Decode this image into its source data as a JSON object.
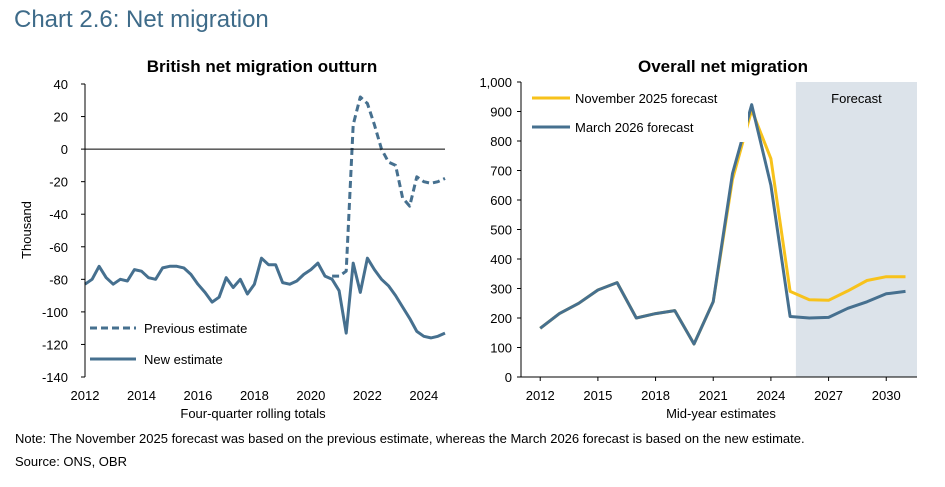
{
  "heading": "Chart 2.6: Net migration",
  "note": "Note: The November 2025 forecast was based on the previous estimate, whereas the March 2026 forecast is based on the new estimate.",
  "source": "Source: ONS, OBR",
  "colors": {
    "dark_blue": "#46708f",
    "gold": "#f7c21b",
    "forecast_shade": "#dce3ea",
    "axis": "#000000"
  },
  "chart_data": [
    {
      "type": "line",
      "title": "British net migration outturn",
      "xlabel": "Four-quarter rolling totals",
      "ylabel": "Thousand",
      "xlim": [
        2012,
        2024.75
      ],
      "ylim": [
        -140,
        40
      ],
      "x_ticks": [
        2012,
        2014,
        2016,
        2018,
        2020,
        2022,
        2024
      ],
      "y_ticks": [
        -140,
        -120,
        -100,
        -80,
        -60,
        -40,
        -20,
        0,
        20,
        40
      ],
      "legend": "bottom-left",
      "series": [
        {
          "name": "Previous estimate",
          "style": "dashed",
          "x": [
            2020.75,
            2021.0,
            2021.25,
            2021.5,
            2021.75,
            2022.0,
            2022.25,
            2022.5,
            2022.75,
            2023.0,
            2023.25,
            2023.5,
            2023.75,
            2024.0,
            2024.25,
            2024.5,
            2024.75
          ],
          "values": [
            -78,
            -78,
            -75,
            15,
            32,
            28,
            15,
            0,
            -8,
            -10,
            -30,
            -35,
            -17,
            -20,
            -21,
            -20,
            -18
          ]
        },
        {
          "name": "New estimate",
          "style": "solid",
          "x": [
            2012.0,
            2012.25,
            2012.5,
            2012.75,
            2013.0,
            2013.25,
            2013.5,
            2013.75,
            2014.0,
            2014.25,
            2014.5,
            2014.75,
            2015.0,
            2015.25,
            2015.5,
            2015.75,
            2016.0,
            2016.25,
            2016.5,
            2016.75,
            2017.0,
            2017.25,
            2017.5,
            2017.75,
            2018.0,
            2018.25,
            2018.5,
            2018.75,
            2019.0,
            2019.25,
            2019.5,
            2019.75,
            2020.0,
            2020.25,
            2020.5,
            2020.75,
            2021.0,
            2021.25,
            2021.5,
            2021.75,
            2022.0,
            2022.25,
            2022.5,
            2022.75,
            2023.0,
            2023.25,
            2023.5,
            2023.75,
            2024.0,
            2024.25,
            2024.5,
            2024.75
          ],
          "values": [
            -83,
            -80,
            -72,
            -79,
            -83,
            -80,
            -81,
            -74,
            -75,
            -79,
            -80,
            -73,
            -72,
            -72,
            -73,
            -77,
            -83,
            -88,
            -94,
            -91,
            -79,
            -85,
            -80,
            -89,
            -83,
            -67,
            -71,
            -71,
            -82,
            -83,
            -81,
            -77,
            -74,
            -70,
            -78,
            -80,
            -87,
            -113,
            -70,
            -88,
            -67,
            -74,
            -80,
            -84,
            -90,
            -97,
            -104,
            -112,
            -115,
            -116,
            -115,
            -113
          ]
        }
      ]
    },
    {
      "type": "line",
      "title": "Overall net migration",
      "xlabel": "Mid-year estimates",
      "ylabel": "",
      "xlim": [
        2011,
        2031.6
      ],
      "ylim": [
        0,
        1000
      ],
      "x_ticks": [
        2012,
        2015,
        2018,
        2021,
        2024,
        2027,
        2030
      ],
      "y_ticks": [
        0,
        100,
        200,
        300,
        400,
        500,
        600,
        700,
        800,
        900,
        1000
      ],
      "y_tick_labels": [
        "0",
        "100",
        "200",
        "300",
        "400",
        "500",
        "600",
        "700",
        "800",
        "900",
        "1,000"
      ],
      "forecast_region": {
        "label": "Forecast",
        "x_start": 2025.3,
        "x_end": 2031.6
      },
      "legend": "top-left",
      "series": [
        {
          "name": "November 2025 forecast",
          "style": "solid",
          "x": [
            2012,
            2013,
            2014,
            2015,
            2016,
            2017,
            2018,
            2019,
            2020,
            2021,
            2022,
            2023,
            2024,
            2025,
            2026,
            2027,
            2028,
            2029,
            2030,
            2031
          ],
          "values": [
            165,
            215,
            250,
            295,
            320,
            200,
            215,
            225,
            112,
            255,
            670,
            905,
            740,
            290,
            262,
            260,
            292,
            327,
            340,
            340
          ]
        },
        {
          "name": "March 2026 forecast",
          "style": "solid",
          "x": [
            2012,
            2013,
            2014,
            2015,
            2016,
            2017,
            2018,
            2019,
            2020,
            2021,
            2022,
            2023,
            2024,
            2025,
            2026,
            2027,
            2028,
            2029,
            2030,
            2031
          ],
          "values": [
            165,
            215,
            250,
            295,
            320,
            200,
            215,
            225,
            112,
            255,
            690,
            923,
            650,
            205,
            200,
            202,
            233,
            255,
            282,
            290
          ]
        }
      ]
    }
  ]
}
